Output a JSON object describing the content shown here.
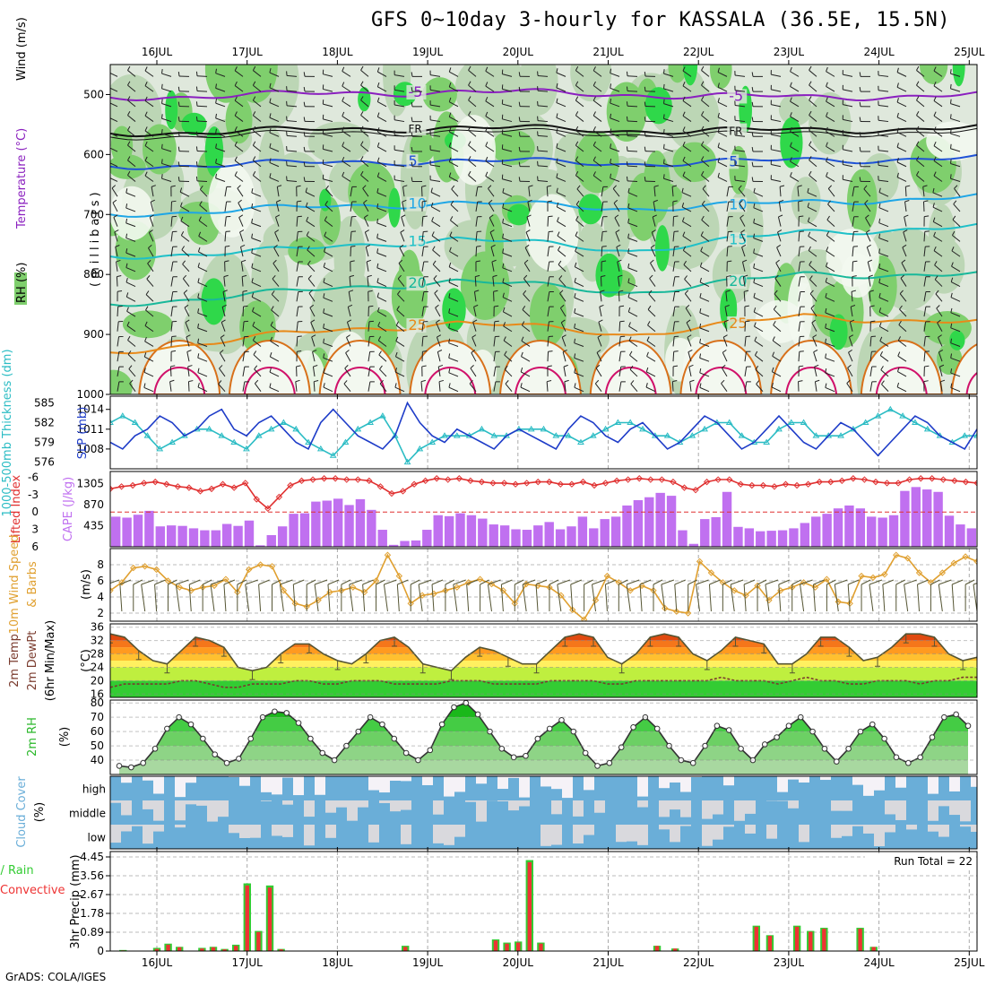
{
  "title": "GFS 0~10day 3-hourly for KASSALA (36.5E, 15.5N)",
  "footer": "GrADS: COLA/IGES",
  "colors": {
    "rh1": "#dfe8dc",
    "rh2": "#bcd6b5",
    "rh3": "#7fcf6d",
    "rh4": "#2fd84a",
    "rh5": "#00aa00",
    "fill_white": "#f3f8f0",
    "wind_barb": "#222222",
    "temp_m5": "#8a1fbf",
    "temp_fr": "#111111",
    "temp_5": "#1f52d6",
    "temp_10": "#1ea6e6",
    "temp_15": "#1ec0c8",
    "temp_20": "#18b89a",
    "temp_25": "#e88a1a",
    "temp_30": "#d8701a",
    "temp_35": "#d0116a",
    "slp": "#1e3cc8",
    "thickness": "#2bbcc4",
    "lifted": "#e03030",
    "cape": "#c070f0",
    "wind10": "#e0a030",
    "cloud": "#6aaed8",
    "cloud_gap": "#f5f2f7",
    "rain_total": "#33cc33",
    "rain_conv": "#ee3333"
  },
  "chart_data": [
    {
      "panel": "upper-air",
      "type": "heatmap",
      "date_labels": [
        "16JUL",
        "17JUL",
        "18JUL",
        "19JUL",
        "20JUL",
        "21JUL",
        "22JUL",
        "23JUL",
        "24JUL",
        "25JUL"
      ],
      "ylabel": "(millibars)",
      "legend": [
        "Wind (m/s)",
        "Temperature (°C)",
        "RH (%)"
      ],
      "yticks": [
        500,
        600,
        700,
        800,
        900,
        1000
      ],
      "ylim": [
        450,
        1000
      ],
      "isotherm_labels": [
        "-5",
        "FR",
        "5",
        "10",
        "15",
        "20",
        "25"
      ],
      "isotherms": [
        {
          "label": "-5",
          "levels": [
            505,
            500,
            495,
            500,
            505,
            500
          ]
        },
        {
          "label": "FR",
          "levels": [
            565,
            560,
            555,
            560,
            560,
            555
          ]
        },
        {
          "label": "5",
          "levels": [
            620,
            615,
            610,
            615,
            610,
            605
          ]
        },
        {
          "label": "10",
          "levels": [
            700,
            690,
            680,
            690,
            680,
            670
          ]
        },
        {
          "label": "15",
          "levels": [
            770,
            760,
            740,
            760,
            730,
            720
          ]
        },
        {
          "label": "20",
          "levels": [
            850,
            830,
            810,
            830,
            800,
            800
          ]
        },
        {
          "label": "25",
          "levels": [
            930,
            900,
            880,
            900,
            870,
            880
          ]
        }
      ]
    },
    {
      "panel": "slp-thickness",
      "type": "line",
      "ylabel_left": "1000-500mb Thickness (dm)",
      "ylabel_right": "SLP (mb)",
      "thickness_ticks": [
        576,
        579,
        582,
        585
      ],
      "slp_ticks": [
        1008,
        1011,
        1014
      ],
      "series": [
        {
          "name": "SLP (mb)",
          "values": [
            1009,
            1008,
            1010,
            1011,
            1013,
            1012,
            1010,
            1011,
            1013,
            1014,
            1011,
            1010,
            1012,
            1013,
            1011,
            1009,
            1008,
            1012,
            1014,
            1012,
            1010,
            1009,
            1008,
            1010,
            1015,
            1012,
            1010,
            1009,
            1011,
            1010,
            1009,
            1008,
            1010,
            1011,
            1010,
            1009,
            1008,
            1011,
            1013,
            1012,
            1010,
            1009,
            1011,
            1012,
            1010,
            1008,
            1009,
            1011,
            1013,
            1012,
            1010,
            1008,
            1009,
            1011,
            1013,
            1011,
            1009,
            1008,
            1010,
            1012,
            1011,
            1009,
            1007,
            1009,
            1011,
            1013,
            1012,
            1010,
            1009,
            1008,
            1011
          ]
        },
        {
          "name": "Thickness (dm)",
          "values": [
            582,
            583,
            582,
            580,
            578,
            579,
            580,
            581,
            581,
            580,
            579,
            578,
            580,
            581,
            582,
            581,
            579,
            578,
            577,
            579,
            581,
            582,
            583,
            580,
            576,
            578,
            579,
            580,
            580,
            580,
            581,
            580,
            580,
            581,
            581,
            581,
            580,
            580,
            579,
            580,
            581,
            582,
            582,
            581,
            580,
            580,
            579,
            580,
            581,
            582,
            582,
            580,
            579,
            579,
            581,
            582,
            582,
            580,
            580,
            580,
            581,
            582,
            583,
            584,
            583,
            582,
            581,
            580,
            579,
            580,
            580
          ]
        }
      ]
    },
    {
      "panel": "lifted-cape",
      "type": "bar",
      "ylabel_left": "Lifted Index",
      "ylabel_right": "CAPE (J/kg)",
      "li_ticks": [
        "6",
        "3",
        "0",
        "-3",
        "-6"
      ],
      "cape_ticks": [
        435,
        870,
        1305
      ],
      "series": [
        {
          "name": "CAPE (J/kg)",
          "values": [
            620,
            600,
            660,
            740,
            420,
            440,
            430,
            380,
            340,
            340,
            470,
            430,
            540,
            30,
            240,
            420,
            680,
            690,
            930,
            950,
            990,
            860,
            980,
            760,
            350,
            40,
            120,
            130,
            350,
            650,
            630,
            690,
            650,
            580,
            460,
            440,
            360,
            350,
            440,
            510,
            360,
            420,
            620,
            380,
            570,
            620,
            850,
            960,
            1020,
            1110,
            1050,
            340,
            60,
            570,
            610,
            1130,
            410,
            380,
            320,
            330,
            340,
            380,
            490,
            620,
            680,
            790,
            850,
            790,
            620,
            600,
            650,
            1150,
            1230,
            1180,
            1130,
            640,
            460,
            380
          ]
        },
        {
          "name": "Lifted Index",
          "values": [
            -4,
            -4.4,
            -4.6,
            -5,
            -5.2,
            -4.8,
            -4.4,
            -4.2,
            -3.6,
            -4,
            -4.8,
            -4.2,
            -5,
            -2.2,
            -0.6,
            -2.6,
            -4.6,
            -5.4,
            -5.6,
            -5.8,
            -5.8,
            -5.6,
            -5.6,
            -5.4,
            -4.4,
            -3.2,
            -3.6,
            -4.8,
            -5.4,
            -5.8,
            -5.6,
            -5.8,
            -5.4,
            -5.2,
            -5,
            -5,
            -4.8,
            -5,
            -5.2,
            -5.2,
            -4.8,
            -4.8,
            -5.2,
            -4.6,
            -5,
            -5.4,
            -5.6,
            -5.8,
            -5.6,
            -5.6,
            -5.2,
            -4.2,
            -3.8,
            -5.2,
            -5.6,
            -5.6,
            -4.8,
            -4.6,
            -4.6,
            -4.4,
            -4.8,
            -4.6,
            -4.8,
            -5.2,
            -5.2,
            -5.4,
            -5.8,
            -5.6,
            -5.2,
            -5,
            -5,
            -5.6,
            -5.8,
            -5.8,
            -5.6,
            -5.4,
            -5.2,
            -5
          ]
        }
      ]
    },
    {
      "panel": "wind10",
      "type": "line",
      "ylabel_left": "10m Wind Speed",
      "ylabel_right": "& Barbs (m/s)",
      "yticks": [
        2,
        4,
        6,
        8
      ],
      "series": [
        {
          "name": "10m Wind Speed",
          "values": [
            4.8,
            5.8,
            7.6,
            7.8,
            7.4,
            6.0,
            5.2,
            4.8,
            5.2,
            5.4,
            6.2,
            4.6,
            7.4,
            8.0,
            7.8,
            4.8,
            3.2,
            2.8,
            3.6,
            4.6,
            4.8,
            5.2,
            4.6,
            6.0,
            9.2,
            6.6,
            3.2,
            4.2,
            4.4,
            4.8,
            5.2,
            5.8,
            6.2,
            5.6,
            4.8,
            3.2,
            5.6,
            5.4,
            5.2,
            4.2,
            2.4,
            1.2,
            3.6,
            6.6,
            5.8,
            4.8,
            5.4,
            4.8,
            2.6,
            2.2,
            2.0,
            8.4,
            7.0,
            5.8,
            4.8,
            4.2,
            5.4,
            3.6,
            4.8,
            5.2,
            5.8,
            5.2,
            6.2,
            3.4,
            3.2,
            6.6,
            6.4,
            6.8,
            9.2,
            8.8,
            7.0,
            5.8,
            7.0,
            8.2,
            9.0,
            8.4
          ]
        }
      ]
    },
    {
      "panel": "temp2m",
      "type": "area",
      "ylabel_left": "2m Temp / 2m DewPt / (6hr Min/Max)",
      "ylabel_right": "(°C)",
      "yticks": [
        16,
        20,
        24,
        28,
        32,
        36
      ],
      "series": [
        {
          "name": "2m Temp",
          "values": [
            34,
            33,
            29,
            26,
            25,
            29,
            33,
            32,
            30,
            24,
            23,
            24,
            28,
            31,
            31,
            28,
            26,
            25,
            28,
            32,
            33,
            30,
            25,
            24,
            23,
            27,
            30,
            29,
            27,
            25,
            25,
            29,
            33,
            34,
            33,
            27,
            25,
            28,
            33,
            34,
            33,
            28,
            26,
            29,
            33,
            32,
            31,
            25,
            25,
            28,
            33,
            33,
            30,
            26,
            27,
            30,
            34,
            34,
            33,
            28,
            26,
            27
          ]
        },
        {
          "name": "2m DewPt",
          "values": [
            18,
            19,
            19,
            19,
            19,
            20,
            20,
            19,
            18,
            18,
            19,
            19,
            19,
            20,
            20,
            19,
            19,
            20,
            20,
            20,
            19,
            19,
            19,
            19,
            20,
            20,
            20,
            19,
            19,
            19,
            19,
            20,
            20,
            20,
            20,
            19,
            19,
            20,
            20,
            20,
            20,
            20,
            20,
            21,
            20,
            20,
            20,
            19,
            20,
            21,
            20,
            20,
            19,
            19,
            20,
            20,
            20,
            19,
            20,
            20,
            21,
            21
          ]
        }
      ]
    },
    {
      "panel": "rh2m",
      "type": "area",
      "ylabel_left": "2m RH",
      "ylabel_right": "(%)",
      "yticks": [
        40,
        50,
        60,
        70,
        80
      ],
      "series": [
        {
          "name": "2m RH",
          "values": [
            36,
            35,
            38,
            48,
            62,
            70,
            65,
            55,
            44,
            38,
            41,
            55,
            70,
            74,
            73,
            66,
            55,
            45,
            40,
            50,
            60,
            70,
            65,
            55,
            45,
            40,
            47,
            65,
            77,
            80,
            72,
            60,
            48,
            42,
            43,
            55,
            62,
            68,
            60,
            45,
            36,
            38,
            49,
            63,
            70,
            62,
            50,
            40,
            38,
            50,
            64,
            61,
            48,
            40,
            51,
            56,
            64,
            70,
            60,
            48,
            39,
            48,
            60,
            65,
            55,
            42,
            38,
            42,
            56,
            70,
            72,
            64
          ]
        }
      ]
    },
    {
      "panel": "cloud",
      "type": "heatmap",
      "ylabel": "Cloud Cover (%)",
      "rows": [
        "high",
        "middle",
        "low"
      ]
    },
    {
      "panel": "precip",
      "type": "bar",
      "ylabel_left": "Total / Rain / Convective",
      "ylabel_right": "3hr Precip (mm)",
      "yticks": [
        "0",
        "0.89",
        "1.78",
        "2.67",
        "3.56",
        "4.45"
      ],
      "run_total": "Run Total = 22",
      "series": [
        {
          "name": "Total",
          "values": [
            0.05,
            0,
            0,
            0.15,
            0.35,
            0.2,
            0,
            0.15,
            0.2,
            0.1,
            0.3,
            3.2,
            0.95,
            3.1,
            0.1,
            0,
            0,
            0,
            0,
            0,
            0,
            0,
            0,
            0,
            0,
            0.25,
            0,
            0,
            0,
            0,
            0,
            0,
            0,
            0.55,
            0.4,
            0.45,
            4.3,
            0.4
          ]
        },
        {
          "name": "Convective",
          "values": [
            0.03,
            0,
            0,
            0.1,
            0.3,
            0.18,
            0,
            0.12,
            0.18,
            0.08,
            0.25,
            3.1,
            0.9,
            3.0,
            0.08,
            0,
            0,
            0,
            0,
            0,
            0,
            0,
            0,
            0,
            0,
            0.2,
            0,
            0,
            0,
            0,
            0,
            0,
            0,
            0.5,
            0.35,
            0.4,
            4.2,
            0.35
          ]
        }
      ],
      "late_bars": [
        {
          "day": 5.5,
          "v": 0.25
        },
        {
          "day": 5.7,
          "v": 0.12
        },
        {
          "day": 6.6,
          "v": 1.2
        },
        {
          "day": 6.75,
          "v": 0.75
        },
        {
          "day": 7.05,
          "v": 1.2
        },
        {
          "day": 7.2,
          "v": 0.95
        },
        {
          "day": 7.35,
          "v": 1.1
        },
        {
          "day": 7.75,
          "v": 1.1
        },
        {
          "day": 7.9,
          "v": 0.2
        },
        {
          "day": 9.4,
          "v": 0.08
        }
      ]
    }
  ]
}
